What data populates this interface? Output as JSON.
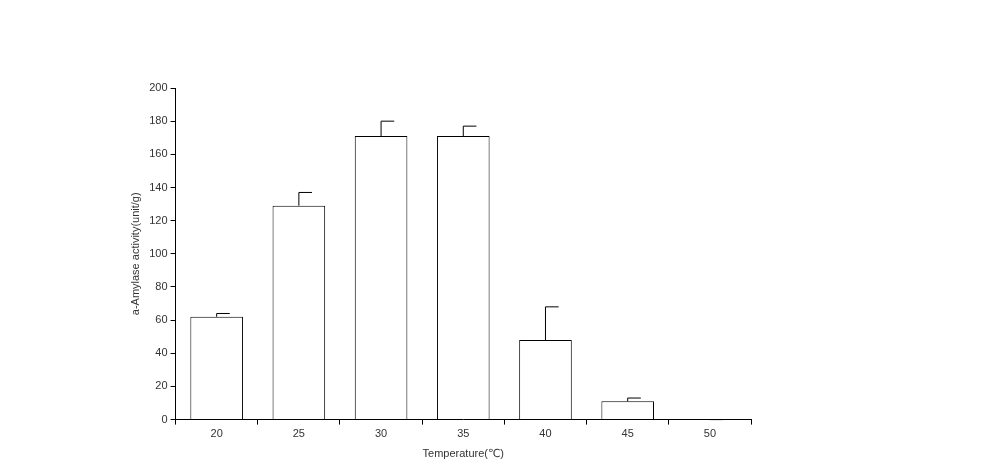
{
  "chart_data": {
    "type": "bar",
    "x_label": "Temperature(℃)",
    "y_label": "a-Amylase activity(unit/g)",
    "categories": [
      "20",
      "25",
      "30",
      "35",
      "40",
      "45",
      "50"
    ],
    "values": [
      62,
      129,
      171,
      171,
      48,
      11,
      0
    ],
    "errors": [
      2,
      8,
      9,
      6,
      20,
      2,
      0
    ],
    "color": "#ffffff",
    "ylim": [
      0,
      200
    ],
    "yticks": [
      0,
      20,
      40,
      60,
      80,
      100,
      120,
      140,
      160,
      180,
      200
    ],
    "grid": false
  }
}
